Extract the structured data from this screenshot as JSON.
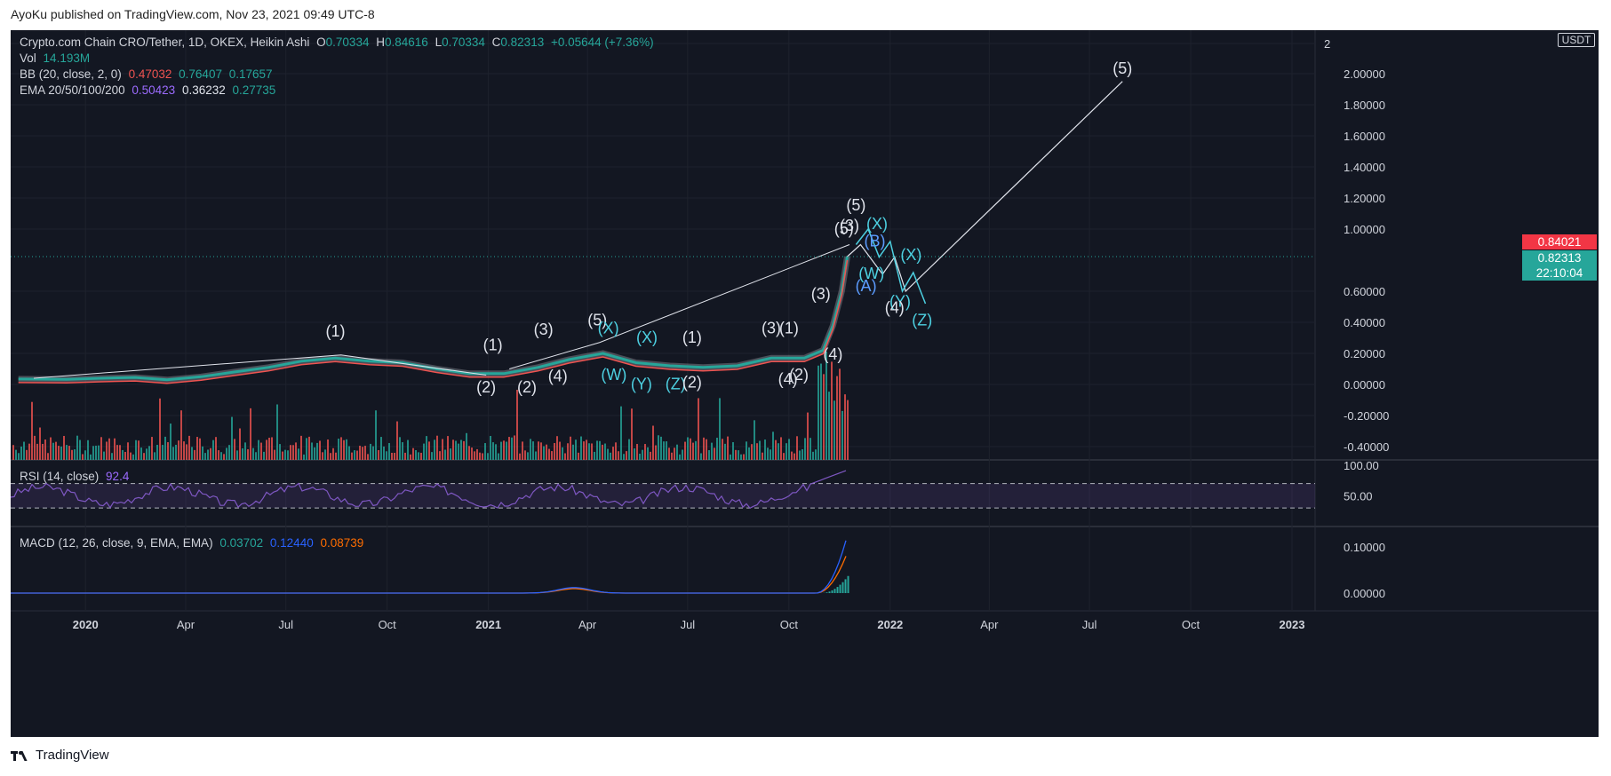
{
  "header": {
    "published": "AyoKu published on TradingView.com, Nov 23, 2021 09:49 UTC-8"
  },
  "footer": {
    "brand": "TradingView"
  },
  "legend": {
    "main": {
      "symbol": "Crypto.com Chain CRO/Tether, 1D, OKEX, Heikin Ashi",
      "o_label": "O",
      "o": "0.70334",
      "h_label": "H",
      "h": "0.84616",
      "l_label": "L",
      "l": "0.70334",
      "c_label": "C",
      "c": "0.82313",
      "chg": "+0.05644 (+7.36%)"
    },
    "vol": {
      "label": "Vol",
      "value": "14.193M"
    },
    "bb": {
      "label": "BB (20, close, 2, 0)",
      "v1": "0.47032",
      "v2": "0.76407",
      "v3": "0.17657"
    },
    "ema": {
      "label": "EMA 20/50/100/200",
      "v1": "0.50423",
      "v2": "0.36232",
      "v3": "0.27735"
    },
    "rsi": {
      "label": "RSI (14, close)",
      "value": "92.4"
    },
    "macd": {
      "label": "MACD (12, 26, close, 9, EMA, EMA)",
      "v1": "0.03702",
      "v2": "0.12440",
      "v3": "0.08739"
    }
  },
  "price_axis": {
    "currency": "USDT",
    "current_price": "0.82313",
    "countdown": "22:10:04",
    "high_marker": "0.84021"
  },
  "colors": {
    "background": "#131722",
    "up": "#26a69a",
    "down": "#ef5350",
    "rsi": "#7e57c2",
    "macd": "#2962ff",
    "signal": "#ff6d00",
    "high_marker": "#f23645"
  },
  "chart_data": {
    "type": "line",
    "title": "Crypto.com Chain CRO/Tether, 1D, OKEX, Heikin Ashi",
    "x_ticks": [
      "2020",
      "Apr",
      "Jul",
      "Oct",
      "2021",
      "Apr",
      "Jul",
      "Oct",
      "2022",
      "Apr",
      "Jul",
      "Oct",
      "2023"
    ],
    "y_ticks": [
      "2",
      "2.00000",
      "1.80000",
      "1.60000",
      "1.40000",
      "1.20000",
      "1.00000",
      "0.60000",
      "0.40000",
      "0.20000",
      "0.00000",
      "-0.20000",
      "-0.40000"
    ],
    "ylim": [
      -0.45,
      2.1
    ],
    "price": {
      "x": [
        "2019-11-01",
        "2019-12-15",
        "2020-01-15",
        "2020-02-15",
        "2020-03-15",
        "2020-04-15",
        "2020-05-15",
        "2020-06-15",
        "2020-07-15",
        "2020-08-15",
        "2020-09-15",
        "2020-10-15",
        "2020-11-15",
        "2020-12-15",
        "2021-01-15",
        "2021-02-15",
        "2021-03-15",
        "2021-04-15",
        "2021-05-15",
        "2021-06-15",
        "2021-07-15",
        "2021-08-15",
        "2021-09-15",
        "2021-10-15",
        "2021-11-01",
        "2021-11-10",
        "2021-11-18",
        "2021-11-23"
      ],
      "y": [
        0.035,
        0.033,
        0.04,
        0.045,
        0.03,
        0.05,
        0.08,
        0.11,
        0.15,
        0.17,
        0.15,
        0.14,
        0.1,
        0.07,
        0.07,
        0.11,
        0.16,
        0.2,
        0.14,
        0.12,
        0.11,
        0.12,
        0.17,
        0.17,
        0.22,
        0.38,
        0.6,
        0.823
      ]
    },
    "wave_labels": [
      {
        "text": "(1)",
        "x": "2020-08-15",
        "y": 0.31
      },
      {
        "text": "(2)",
        "x": "2020-12-30",
        "y": -0.05
      },
      {
        "text": "(1)",
        "x": "2021-01-05",
        "y": 0.22
      },
      {
        "text": "(2)",
        "x": "2021-02-05",
        "y": -0.05
      },
      {
        "text": "(3)",
        "x": "2021-02-20",
        "y": 0.32
      },
      {
        "text": "(4)",
        "x": "2021-03-05",
        "y": 0.02
      },
      {
        "text": "(5)",
        "x": "2021-04-10",
        "y": 0.38
      },
      {
        "text": "(X)",
        "x": "2021-04-20",
        "y": 0.33
      },
      {
        "text": "(W)",
        "x": "2021-04-25",
        "y": 0.03
      },
      {
        "text": "(X)",
        "x": "2021-05-25",
        "y": 0.27
      },
      {
        "text": "(Y)",
        "x": "2021-05-20",
        "y": -0.03
      },
      {
        "text": "(Z)",
        "x": "2021-06-20",
        "y": -0.03
      },
      {
        "text": "(1)",
        "x": "2021-07-05",
        "y": 0.27
      },
      {
        "text": "(2)",
        "x": "2021-07-05",
        "y": -0.02
      },
      {
        "text": "(3)",
        "x": "2021-09-15",
        "y": 0.33
      },
      {
        "text": "(1)",
        "x": "2021-10-01",
        "y": 0.33
      },
      {
        "text": "(4)",
        "x": "2021-09-30",
        "y": 0.0
      },
      {
        "text": "(2)",
        "x": "2021-10-10",
        "y": 0.03
      },
      {
        "text": "(3)",
        "x": "2021-10-30",
        "y": 0.55
      },
      {
        "text": "(4)",
        "x": "2021-11-10",
        "y": 0.16
      },
      {
        "text": "(5)",
        "x": "2021-11-20",
        "y": 0.97
      },
      {
        "text": "(3)",
        "x": "2021-11-25",
        "y": 0.99
      },
      {
        "text": "(5)",
        "x": "2021-12-01",
        "y": 1.12
      },
      {
        "text": "(X)",
        "x": "2021-12-20",
        "y": 1.0
      },
      {
        "text": "(B)",
        "x": "2021-12-18",
        "y": 0.89
      },
      {
        "text": "(X)",
        "x": "2022-01-20",
        "y": 0.8
      },
      {
        "text": "(W)",
        "x": "2021-12-15",
        "y": 0.68
      },
      {
        "text": "(A)",
        "x": "2021-12-10",
        "y": 0.6
      },
      {
        "text": "(Y)",
        "x": "2022-01-10",
        "y": 0.5
      },
      {
        "text": "(4)",
        "x": "2022-01-05",
        "y": 0.46
      },
      {
        "text": "(Z)",
        "x": "2022-01-30",
        "y": 0.38
      },
      {
        "text": "(5)",
        "x": "2022-07-31",
        "y": 2.0
      }
    ],
    "rsi": {
      "label": "RSI (14, close)",
      "value": 92.4,
      "y_ticks": [
        "100.00",
        "50.00"
      ],
      "levels": [
        70,
        30
      ]
    },
    "macd": {
      "label": "MACD (12, 26, close, 9, EMA, EMA)",
      "macd": 0.1244,
      "signal": 0.08739,
      "histogram": 0.03702,
      "y_ticks": [
        "0.10000",
        "0.00000"
      ]
    }
  }
}
